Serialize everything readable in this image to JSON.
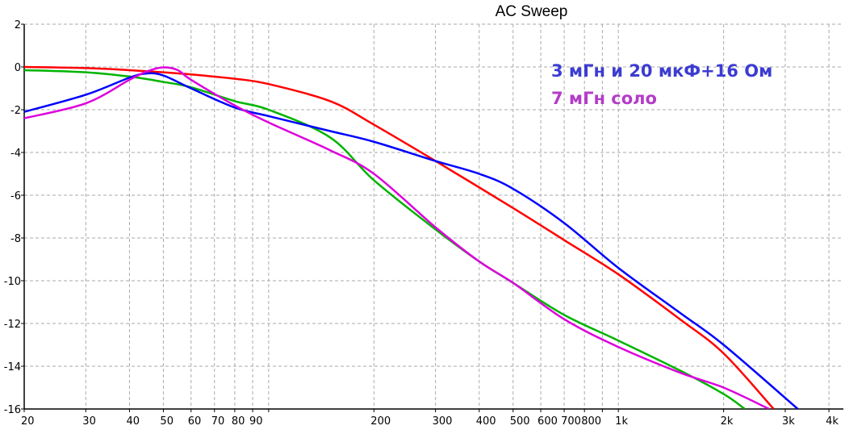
{
  "chart_data": {
    "type": "line",
    "title": "AC Sweep",
    "xlabel": "",
    "ylabel": "",
    "xscale": "log",
    "xlim": [
      20,
      4400
    ],
    "ylim": [
      -16,
      2
    ],
    "grid": true,
    "legend_position": "top-right",
    "x_ticks": [
      {
        "v": 20,
        "label": "20"
      },
      {
        "v": 30,
        "label": "30"
      },
      {
        "v": 40,
        "label": "40"
      },
      {
        "v": 50,
        "label": "50"
      },
      {
        "v": 60,
        "label": "60"
      },
      {
        "v": 70,
        "label": "70"
      },
      {
        "v": 80,
        "label": "80"
      },
      {
        "v": 90,
        "label": "90"
      },
      {
        "v": 100,
        "label": ""
      },
      {
        "v": 200,
        "label": "200"
      },
      {
        "v": 300,
        "label": "300"
      },
      {
        "v": 400,
        "label": "400"
      },
      {
        "v": 500,
        "label": "500"
      },
      {
        "v": 600,
        "label": "600"
      },
      {
        "v": 700,
        "label": "700"
      },
      {
        "v": 800,
        "label": "800"
      },
      {
        "v": 900,
        "label": ""
      },
      {
        "v": 1000,
        "label": "1k"
      },
      {
        "v": 2000,
        "label": "2k"
      },
      {
        "v": 3000,
        "label": "3k"
      },
      {
        "v": 4000,
        "label": "4k"
      }
    ],
    "y_ticks": [
      {
        "v": 2,
        "label": "2"
      },
      {
        "v": 0,
        "label": "0"
      },
      {
        "v": -2,
        "label": "-2"
      },
      {
        "v": -4,
        "label": "-4"
      },
      {
        "v": -6,
        "label": "-6"
      },
      {
        "v": -8,
        "label": "-8"
      },
      {
        "v": -10,
        "label": "-10"
      },
      {
        "v": -12,
        "label": "-12"
      },
      {
        "v": -14,
        "label": "-14"
      },
      {
        "v": -16,
        "label": "-16"
      }
    ],
    "series": [
      {
        "name": "red",
        "color": "#ff0000",
        "x": [
          20,
          30,
          40,
          50,
          60,
          80,
          100,
          150,
          200,
          300,
          500,
          700,
          1000,
          1500,
          2000,
          2780
        ],
        "y": [
          0,
          -0.05,
          -0.15,
          -0.25,
          -0.35,
          -0.55,
          -0.8,
          -1.6,
          -2.7,
          -4.4,
          -6.6,
          -8.1,
          -9.7,
          -11.8,
          -13.4,
          -16
        ]
      },
      {
        "name": "green",
        "color": "#00b400",
        "x": [
          20,
          30,
          40,
          50,
          60,
          80,
          100,
          150,
          200,
          300,
          400,
          500,
          700,
          1000,
          1500,
          2000,
          2300
        ],
        "y": [
          -0.15,
          -0.25,
          -0.45,
          -0.7,
          -0.95,
          -1.6,
          -2.0,
          -3.3,
          -5.3,
          -7.6,
          -9.1,
          -10.1,
          -11.6,
          -12.8,
          -14.2,
          -15.3,
          -16
        ]
      },
      {
        "name": "3 мГн и 20 мкФ+16 Ом",
        "color": "#0000ff",
        "x": [
          20,
          30,
          40,
          45,
          50,
          60,
          80,
          100,
          150,
          200,
          300,
          400,
          500,
          700,
          1000,
          1500,
          2000,
          3260
        ],
        "y": [
          -2.1,
          -1.3,
          -0.5,
          -0.3,
          -0.4,
          -1.0,
          -1.9,
          -2.3,
          -3.0,
          -3.5,
          -4.4,
          -5.0,
          -5.7,
          -7.3,
          -9.4,
          -11.5,
          -13.0,
          -16
        ]
      },
      {
        "name": "7 мГн соло",
        "color": "#dd00dd",
        "x": [
          20,
          30,
          40,
          45,
          50,
          55,
          60,
          80,
          100,
          150,
          200,
          300,
          400,
          500,
          700,
          1000,
          1500,
          2000,
          2700
        ],
        "y": [
          -2.4,
          -1.7,
          -0.6,
          -0.2,
          -0.02,
          -0.15,
          -0.6,
          -1.8,
          -2.6,
          -3.9,
          -5.0,
          -7.5,
          -9.1,
          -10.1,
          -11.8,
          -13.1,
          -14.3,
          -15.0,
          -16
        ]
      }
    ],
    "legend": [
      {
        "label": "3 мГн и 20 мкФ+16 Ом",
        "color": "#3c3cd2"
      },
      {
        "label": "7 мГн соло",
        "color": "#b43cc8"
      }
    ]
  }
}
